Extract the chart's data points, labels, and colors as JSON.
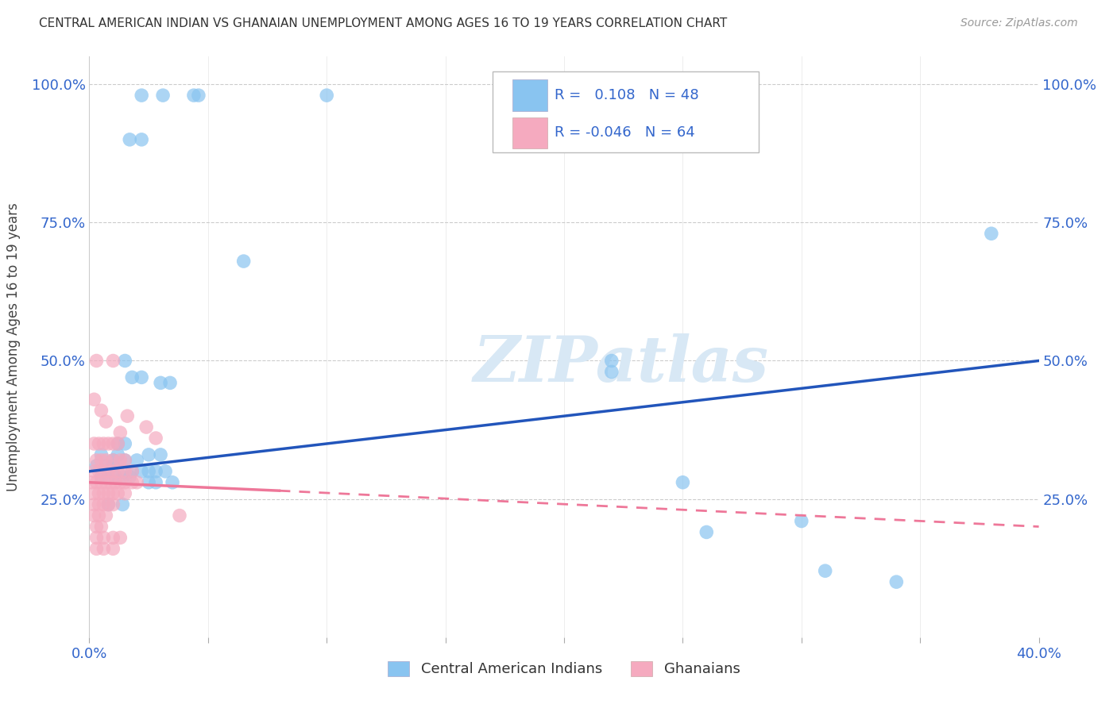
{
  "title": "CENTRAL AMERICAN INDIAN VS GHANAIAN UNEMPLOYMENT AMONG AGES 16 TO 19 YEARS CORRELATION CHART",
  "source": "Source: ZipAtlas.com",
  "ylabel": "Unemployment Among Ages 16 to 19 years",
  "xlim": [
    0.0,
    0.4
  ],
  "ylim": [
    0.0,
    105.0
  ],
  "xticks": [
    0.0,
    0.05,
    0.1,
    0.15,
    0.2,
    0.25,
    0.3,
    0.35,
    0.4
  ],
  "xticklabels": [
    "0.0%",
    "",
    "",
    "",
    "",
    "",
    "",
    "",
    "40.0%"
  ],
  "yticks": [
    0.0,
    25.0,
    50.0,
    75.0,
    100.0
  ],
  "yticklabels": [
    "",
    "25.0%",
    "50.0%",
    "75.0%",
    "100.0%"
  ],
  "blue_R": "0.108",
  "blue_N": "48",
  "pink_R": "-0.046",
  "pink_N": "64",
  "blue_color": "#89C4F0",
  "pink_color": "#F5AABF",
  "blue_line_color": "#2255BB",
  "pink_line_color": "#EE7799",
  "watermark_color": "#D8E8F5",
  "watermark": "ZIPatlas",
  "legend_label_blue": "Central American Indians",
  "legend_label_pink": "Ghanaians",
  "blue_points": [
    [
      0.022,
      98
    ],
    [
      0.031,
      98
    ],
    [
      0.044,
      98
    ],
    [
      0.046,
      98
    ],
    [
      0.017,
      90
    ],
    [
      0.022,
      90
    ],
    [
      0.1,
      98
    ],
    [
      0.065,
      68
    ],
    [
      0.015,
      50
    ],
    [
      0.22,
      50
    ],
    [
      0.22,
      48
    ],
    [
      0.018,
      47
    ],
    [
      0.022,
      47
    ],
    [
      0.03,
      46
    ],
    [
      0.034,
      46
    ],
    [
      0.012,
      35
    ],
    [
      0.015,
      35
    ],
    [
      0.005,
      33
    ],
    [
      0.012,
      33
    ],
    [
      0.025,
      33
    ],
    [
      0.03,
      33
    ],
    [
      0.01,
      32
    ],
    [
      0.015,
      32
    ],
    [
      0.02,
      32
    ],
    [
      0.003,
      31
    ],
    [
      0.007,
      31
    ],
    [
      0.01,
      31
    ],
    [
      0.018,
      30
    ],
    [
      0.022,
      30
    ],
    [
      0.025,
      30
    ],
    [
      0.028,
      30
    ],
    [
      0.032,
      30
    ],
    [
      0.005,
      29
    ],
    [
      0.008,
      29
    ],
    [
      0.011,
      29
    ],
    [
      0.014,
      29
    ],
    [
      0.017,
      29
    ],
    [
      0.025,
      28
    ],
    [
      0.028,
      28
    ],
    [
      0.035,
      28
    ],
    [
      0.008,
      24
    ],
    [
      0.014,
      24
    ],
    [
      0.25,
      28
    ],
    [
      0.3,
      21
    ],
    [
      0.26,
      19
    ],
    [
      0.38,
      73
    ],
    [
      0.31,
      12
    ],
    [
      0.34,
      10
    ]
  ],
  "pink_points": [
    [
      0.003,
      50
    ],
    [
      0.01,
      50
    ],
    [
      0.002,
      43
    ],
    [
      0.005,
      41
    ],
    [
      0.007,
      39
    ],
    [
      0.016,
      40
    ],
    [
      0.024,
      38
    ],
    [
      0.013,
      37
    ],
    [
      0.028,
      36
    ],
    [
      0.002,
      35
    ],
    [
      0.004,
      35
    ],
    [
      0.006,
      35
    ],
    [
      0.008,
      35
    ],
    [
      0.01,
      35
    ],
    [
      0.012,
      35
    ],
    [
      0.003,
      32
    ],
    [
      0.005,
      32
    ],
    [
      0.007,
      32
    ],
    [
      0.01,
      32
    ],
    [
      0.013,
      32
    ],
    [
      0.015,
      32
    ],
    [
      0.002,
      30
    ],
    [
      0.004,
      30
    ],
    [
      0.006,
      30
    ],
    [
      0.008,
      30
    ],
    [
      0.01,
      30
    ],
    [
      0.012,
      30
    ],
    [
      0.015,
      30
    ],
    [
      0.018,
      30
    ],
    [
      0.001,
      28
    ],
    [
      0.003,
      28
    ],
    [
      0.005,
      28
    ],
    [
      0.007,
      28
    ],
    [
      0.009,
      28
    ],
    [
      0.011,
      28
    ],
    [
      0.013,
      28
    ],
    [
      0.015,
      28
    ],
    [
      0.018,
      28
    ],
    [
      0.02,
      28
    ],
    [
      0.002,
      26
    ],
    [
      0.004,
      26
    ],
    [
      0.006,
      26
    ],
    [
      0.008,
      26
    ],
    [
      0.01,
      26
    ],
    [
      0.012,
      26
    ],
    [
      0.015,
      26
    ],
    [
      0.002,
      24
    ],
    [
      0.004,
      24
    ],
    [
      0.006,
      24
    ],
    [
      0.008,
      24
    ],
    [
      0.01,
      24
    ],
    [
      0.002,
      22
    ],
    [
      0.004,
      22
    ],
    [
      0.007,
      22
    ],
    [
      0.038,
      22
    ],
    [
      0.003,
      20
    ],
    [
      0.005,
      20
    ],
    [
      0.003,
      18
    ],
    [
      0.006,
      18
    ],
    [
      0.01,
      18
    ],
    [
      0.013,
      18
    ],
    [
      0.003,
      16
    ],
    [
      0.006,
      16
    ],
    [
      0.01,
      16
    ]
  ],
  "blue_line": [
    [
      0.0,
      30.0
    ],
    [
      0.4,
      50.0
    ]
  ],
  "pink_line_solid": [
    [
      0.0,
      28.0
    ],
    [
      0.08,
      26.5
    ]
  ],
  "pink_line_dash": [
    [
      0.08,
      26.5
    ],
    [
      0.4,
      20.0
    ]
  ]
}
